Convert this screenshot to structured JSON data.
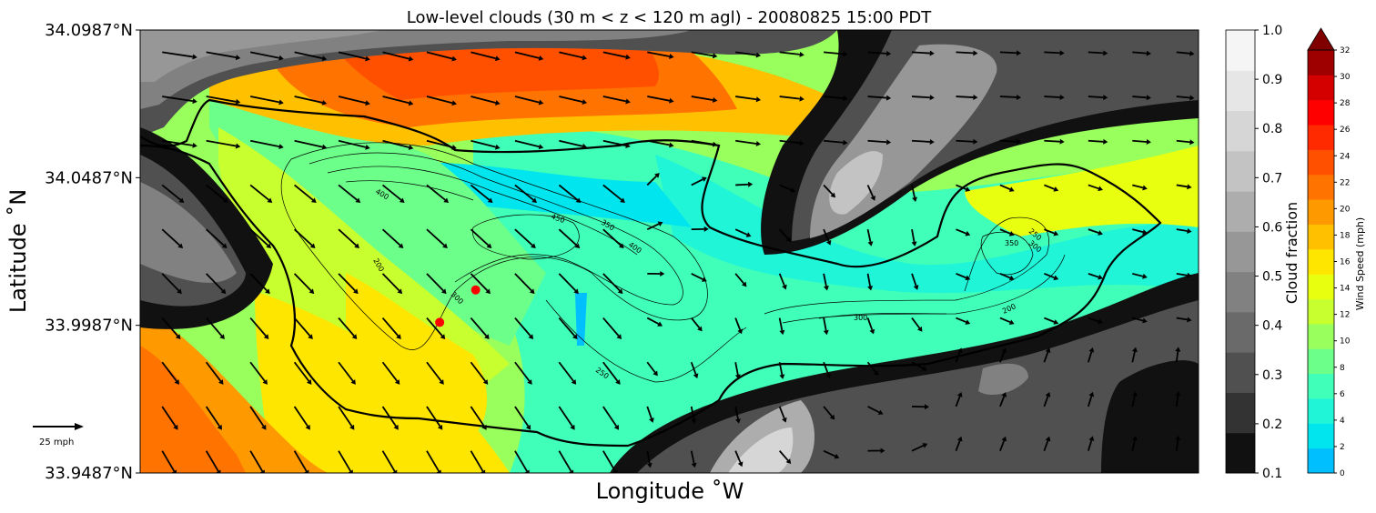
{
  "chart_data": {
    "type": "heatmap",
    "title": "Low-level clouds (30 m < z < 120 m agl) - 20080825 15:00 PDT",
    "xlabel": "Longitude $^\\circ$W",
    "xlabel_text": "Longitude ˚W",
    "ylabel_text": "Latitude ˚N",
    "yticks": [
      "34.0987°N",
      "34.0487°N",
      "33.9987°N",
      "33.9487°N"
    ],
    "yvalues": [
      34.0987,
      34.0487,
      33.9987,
      33.9487
    ],
    "ylim": [
      33.9487,
      34.0987
    ],
    "wind_key_label": "25 mph",
    "contour_labels": [
      "400",
      "450",
      "350",
      "400",
      "200",
      "300",
      "250",
      "250",
      "350",
      "300",
      "200",
      "300"
    ],
    "cloud_colorbar": {
      "label": "Cloud fraction",
      "ticks": [
        "1.0",
        "0.9",
        "0.8",
        "0.7",
        "0.6",
        "0.5",
        "0.4",
        "0.3",
        "0.2",
        "0.1"
      ],
      "levels": [
        0.1,
        0.15,
        0.2,
        0.25,
        0.3,
        0.35,
        0.4,
        0.45,
        0.5,
        0.55,
        0.6,
        0.65,
        0.7,
        0.75,
        0.8,
        0.85,
        0.9,
        0.95,
        1.0
      ],
      "colors": [
        "#111111",
        "#333333",
        "#505050",
        "#6a6a6a",
        "#818181",
        "#979797",
        "#adadad",
        "#c3c3c3",
        "#d6d6d6",
        "#e6e6e6",
        "#f5f5f5"
      ]
    },
    "wind_colorbar": {
      "label": "Wind Speed (mph)",
      "ticks": [
        "32",
        "30",
        "28",
        "26",
        "24",
        "22",
        "20",
        "18",
        "16",
        "14",
        "12",
        "10",
        "8",
        "6",
        "4",
        "2",
        "0"
      ],
      "colors": [
        "#00bfff",
        "#00e5ee",
        "#20f5d8",
        "#40ffb8",
        "#6cff8a",
        "#99ff5c",
        "#c8ff2e",
        "#e8ff10",
        "#ffe600",
        "#ffc000",
        "#ff9900",
        "#ff7300",
        "#ff5000",
        "#ff2a00",
        "#ff0000",
        "#d40000",
        "#9e0000"
      ],
      "extend_color": "#800000"
    },
    "markers": [
      {
        "lon_frac": 0.317,
        "lat": 34.0107,
        "color": "#ff0000"
      },
      {
        "lon_frac": 0.283,
        "lat": 33.9997,
        "color": "#ff0000"
      }
    ]
  }
}
